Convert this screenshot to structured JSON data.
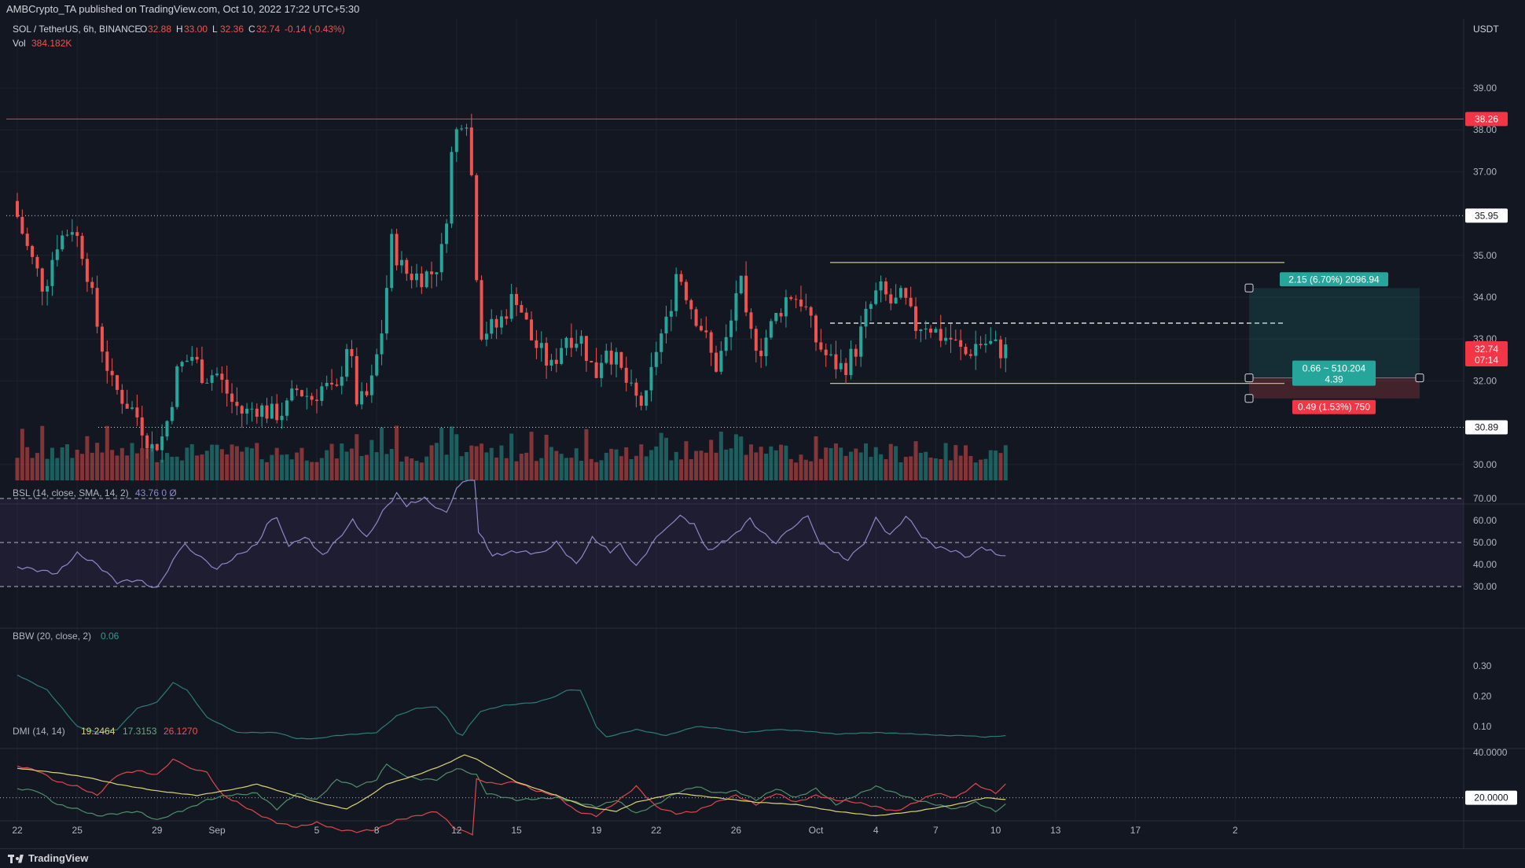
{
  "header": {
    "publish_text": "AMBCrypto_TA published on TradingView.com, Oct 10, 2022 17:22 UTC+5:30"
  },
  "legend": {
    "pair": "SOL / TetherUS, 6h, BINANCE",
    "o_label": "O",
    "o": "32.88",
    "h_label": "H",
    "h": "33.00",
    "l_label": "L",
    "l": "32.36",
    "c_label": "C",
    "c": "32.74",
    "change": "-0.14 (-0.43%)",
    "vol_label": "Vol",
    "vol": "384.182K"
  },
  "currency": "USDT",
  "price_axis": {
    "ticks": [
      {
        "value": 39,
        "label": "39.00"
      },
      {
        "value": 38,
        "label": "38.00"
      },
      {
        "value": 37,
        "label": "37.00"
      },
      {
        "value": 35,
        "label": "35.00"
      },
      {
        "value": 34,
        "label": "34.00"
      },
      {
        "value": 33,
        "label": "33.00"
      },
      {
        "value": 32,
        "label": "32.00"
      },
      {
        "value": 30,
        "label": "30.00"
      }
    ]
  },
  "price_badges": [
    {
      "value": 38.26,
      "label": "38.26",
      "bg": "#f23645",
      "fg": "#ffffff"
    },
    {
      "value": 35.95,
      "label": "35.95",
      "bg": "#ffffff",
      "fg": "#131722"
    },
    {
      "value": 30.89,
      "label": "30.89",
      "bg": "#ffffff",
      "fg": "#131722"
    }
  ],
  "last_price": {
    "value": 32.74,
    "label": "32.74",
    "countdown": "07:14",
    "bg": "#f23645"
  },
  "levels": {
    "resistance_red": 38.26,
    "dotted_high": 35.95,
    "dotted_low": 30.89,
    "range_high": 34.83,
    "range_mid": 33.38,
    "range_low": 31.94
  },
  "position_tool": {
    "entry": 32.07,
    "target": 34.22,
    "stop": 31.58,
    "target_label": "2.15 (6.70%) 2096.94",
    "entry_label_1": "0.66 ~ 510.204",
    "entry_label_2": "4.39",
    "stop_label": "0.49 (1.53%) 750"
  },
  "time_axis": {
    "labels": [
      {
        "label": "22",
        "day": 0
      },
      {
        "label": "25",
        "day": 3
      },
      {
        "label": "29",
        "day": 7
      },
      {
        "label": "Sep",
        "day": 10
      },
      {
        "label": "5",
        "day": 15
      },
      {
        "label": "8",
        "day": 18
      },
      {
        "label": "12",
        "day": 22
      },
      {
        "label": "15",
        "day": 25
      },
      {
        "label": "19",
        "day": 29
      },
      {
        "label": "22",
        "day": 32
      },
      {
        "label": "26",
        "day": 36
      },
      {
        "label": "Oct",
        "day": 40
      },
      {
        "label": "4",
        "day": 43
      },
      {
        "label": "7",
        "day": 46
      },
      {
        "label": "10",
        "day": 49
      },
      {
        "label": "13",
        "day": 52
      },
      {
        "label": "17",
        "day": 56
      },
      {
        "label": "2",
        "day": 61
      }
    ]
  },
  "rsi": {
    "label": "BSL (14, close, SMA, 14, 2)",
    "values_text": "43.76  0  Ø",
    "ticks": [
      {
        "value": 70,
        "label": "70.00"
      },
      {
        "value": 60,
        "label": "60.00"
      },
      {
        "value": 50,
        "label": "50.00"
      },
      {
        "value": 40,
        "label": "40.00"
      },
      {
        "value": 30,
        "label": "30.00"
      }
    ],
    "keypoints": [
      [
        0,
        39
      ],
      [
        2,
        36
      ],
      [
        3,
        45
      ],
      [
        4,
        40
      ],
      [
        5,
        32
      ],
      [
        6,
        33
      ],
      [
        7,
        29
      ],
      [
        7.8,
        42
      ],
      [
        8.4,
        49
      ],
      [
        9.2,
        43
      ],
      [
        10,
        38
      ],
      [
        11,
        44
      ],
      [
        12,
        49
      ],
      [
        12.5,
        58
      ],
      [
        13,
        62
      ],
      [
        13.6,
        48
      ],
      [
        14.4,
        53
      ],
      [
        15.3,
        44
      ],
      [
        16,
        51
      ],
      [
        16.8,
        60
      ],
      [
        17.5,
        52
      ],
      [
        18.3,
        64
      ],
      [
        19,
        72
      ],
      [
        19.5,
        67
      ],
      [
        20.4,
        70
      ],
      [
        21.5,
        63
      ],
      [
        22,
        75
      ],
      [
        22.3,
        77
      ],
      [
        22.9,
        78
      ],
      [
        23.1,
        55
      ],
      [
        23.8,
        44
      ],
      [
        25,
        46
      ],
      [
        26.2,
        45
      ],
      [
        27,
        50
      ],
      [
        28,
        40
      ],
      [
        28.8,
        52
      ],
      [
        29.7,
        46
      ],
      [
        30.2,
        49
      ],
      [
        31,
        39
      ],
      [
        32,
        52
      ],
      [
        32.6,
        58
      ],
      [
        33.2,
        62
      ],
      [
        33.9,
        58
      ],
      [
        34.6,
        46
      ],
      [
        35.3,
        50
      ],
      [
        36,
        54
      ],
      [
        36.7,
        61
      ],
      [
        37.2,
        55
      ],
      [
        38,
        50
      ],
      [
        38.8,
        57
      ],
      [
        39.6,
        62
      ],
      [
        40.2,
        50
      ],
      [
        40.9,
        46
      ],
      [
        41.6,
        42
      ],
      [
        42.4,
        50
      ],
      [
        43,
        61
      ],
      [
        43.7,
        53
      ],
      [
        44.5,
        62
      ],
      [
        45.3,
        53
      ],
      [
        46,
        48
      ],
      [
        47,
        46
      ],
      [
        47.7,
        43
      ],
      [
        48.3,
        48
      ],
      [
        49,
        45
      ],
      [
        49.5,
        44
      ]
    ]
  },
  "bbw": {
    "label": "BBW (20, close, 2)",
    "value": "0.06",
    "ticks": [
      {
        "value": 0.3,
        "label": "0.30"
      },
      {
        "value": 0.2,
        "label": "0.20"
      },
      {
        "value": 0.1,
        "label": "0.10"
      }
    ],
    "keypoints": [
      [
        0,
        0.27
      ],
      [
        1.5,
        0.22
      ],
      [
        3,
        0.1
      ],
      [
        4,
        0.08
      ],
      [
        5,
        0.09
      ],
      [
        6,
        0.16
      ],
      [
        7,
        0.18
      ],
      [
        7.8,
        0.245
      ],
      [
        8.5,
        0.22
      ],
      [
        9.5,
        0.13
      ],
      [
        11,
        0.08
      ],
      [
        13,
        0.08
      ],
      [
        14,
        0.06
      ],
      [
        15,
        0.06
      ],
      [
        16,
        0.07
      ],
      [
        17,
        0.075
      ],
      [
        18,
        0.08
      ],
      [
        19,
        0.135
      ],
      [
        20,
        0.16
      ],
      [
        21,
        0.165
      ],
      [
        21.5,
        0.13
      ],
      [
        22,
        0.08
      ],
      [
        22.3,
        0.07
      ],
      [
        22.6,
        0.1
      ],
      [
        23.2,
        0.15
      ],
      [
        24.4,
        0.17
      ],
      [
        26,
        0.18
      ],
      [
        27,
        0.2
      ],
      [
        27.5,
        0.22
      ],
      [
        28.2,
        0.22
      ],
      [
        29,
        0.1
      ],
      [
        29.5,
        0.065
      ],
      [
        31,
        0.09
      ],
      [
        32.5,
        0.07
      ],
      [
        34,
        0.1
      ],
      [
        35,
        0.095
      ],
      [
        36.5,
        0.08
      ],
      [
        38,
        0.09
      ],
      [
        39.5,
        0.085
      ],
      [
        41,
        0.075
      ],
      [
        43,
        0.08
      ],
      [
        45,
        0.075
      ],
      [
        46.5,
        0.07
      ],
      [
        47.5,
        0.07
      ],
      [
        48.5,
        0.065
      ],
      [
        49.5,
        0.07
      ]
    ]
  },
  "dmi": {
    "label": "DMI (14, 14)",
    "adx": "19.2464",
    "plus_di": "17.3153",
    "minus_di": "26.1270",
    "ticks": [
      {
        "value": 40,
        "label": "40.0000"
      },
      {
        "value": 20,
        "label": "20.0000"
      }
    ],
    "adx_keypoints": [
      [
        0,
        33
      ],
      [
        2,
        31
      ],
      [
        3.5,
        29
      ],
      [
        5,
        26
      ],
      [
        7,
        23
      ],
      [
        9,
        21
      ],
      [
        11,
        24
      ],
      [
        12,
        26
      ],
      [
        13.5,
        22
      ],
      [
        15,
        18
      ],
      [
        16.5,
        15
      ],
      [
        17.5,
        20
      ],
      [
        18.5,
        26
      ],
      [
        20,
        30
      ],
      [
        21.5,
        35
      ],
      [
        22.4,
        39
      ],
      [
        23,
        37
      ],
      [
        25,
        27
      ],
      [
        27,
        21
      ],
      [
        28.5,
        16
      ],
      [
        30,
        14
      ],
      [
        31,
        18
      ],
      [
        33,
        22
      ],
      [
        35,
        20
      ],
      [
        37,
        18
      ],
      [
        39,
        17
      ],
      [
        41,
        14
      ],
      [
        43,
        12
      ],
      [
        45,
        14
      ],
      [
        47,
        17
      ],
      [
        48.5,
        20
      ],
      [
        49.5,
        19.2
      ]
    ],
    "plus_keypoints": [
      [
        0,
        24
      ],
      [
        1,
        23
      ],
      [
        2,
        17
      ],
      [
        3,
        15
      ],
      [
        4,
        12
      ],
      [
        5,
        13
      ],
      [
        6,
        14
      ],
      [
        7,
        10
      ],
      [
        7.8,
        13
      ],
      [
        8.5,
        15
      ],
      [
        9.5,
        19
      ],
      [
        10.5,
        21
      ],
      [
        12,
        22
      ],
      [
        13,
        15
      ],
      [
        14,
        22
      ],
      [
        15,
        19
      ],
      [
        16,
        28
      ],
      [
        17,
        25
      ],
      [
        18,
        28
      ],
      [
        18.5,
        35
      ],
      [
        19.3,
        30
      ],
      [
        20.2,
        28
      ],
      [
        21,
        28
      ],
      [
        22,
        33
      ],
      [
        23,
        30
      ],
      [
        23.5,
        22
      ],
      [
        25,
        19
      ],
      [
        27,
        20
      ],
      [
        28,
        18
      ],
      [
        29,
        16
      ],
      [
        30,
        19
      ],
      [
        31,
        13
      ],
      [
        32,
        17
      ],
      [
        33,
        22
      ],
      [
        34,
        25
      ],
      [
        35,
        22
      ],
      [
        36,
        23
      ],
      [
        37,
        19
      ],
      [
        38,
        24
      ],
      [
        39,
        20
      ],
      [
        40,
        24
      ],
      [
        41,
        17
      ],
      [
        42,
        21
      ],
      [
        43,
        25
      ],
      [
        44,
        22
      ],
      [
        45,
        19
      ],
      [
        46,
        17
      ],
      [
        47,
        15
      ],
      [
        48,
        18
      ],
      [
        49,
        14
      ],
      [
        49.5,
        17.3
      ]
    ],
    "minus_keypoints": [
      [
        0,
        34
      ],
      [
        1,
        32
      ],
      [
        2,
        27
      ],
      [
        3,
        25
      ],
      [
        4,
        21
      ],
      [
        5,
        30
      ],
      [
        6,
        32
      ],
      [
        7,
        30
      ],
      [
        7.8,
        37
      ],
      [
        8.4,
        34
      ],
      [
        9.5,
        31
      ],
      [
        10.3,
        21
      ],
      [
        11,
        18
      ],
      [
        12,
        13
      ],
      [
        13,
        9
      ],
      [
        14,
        7
      ],
      [
        15,
        9
      ],
      [
        16,
        6
      ],
      [
        17,
        5
      ],
      [
        18,
        6
      ],
      [
        19,
        10
      ],
      [
        20,
        12
      ],
      [
        21,
        14
      ],
      [
        22,
        6
      ],
      [
        22.8,
        4
      ],
      [
        23,
        28
      ],
      [
        24,
        26
      ],
      [
        25,
        27
      ],
      [
        26,
        23
      ],
      [
        27,
        21
      ],
      [
        28,
        14
      ],
      [
        29,
        12
      ],
      [
        30,
        18
      ],
      [
        31,
        25
      ],
      [
        32,
        16
      ],
      [
        33,
        13
      ],
      [
        34,
        14
      ],
      [
        35,
        18
      ],
      [
        36,
        21
      ],
      [
        37,
        17
      ],
      [
        38,
        22
      ],
      [
        39,
        18
      ],
      [
        40,
        21
      ],
      [
        41,
        19
      ],
      [
        42,
        18
      ],
      [
        43,
        16
      ],
      [
        44,
        14
      ],
      [
        45,
        18
      ],
      [
        46,
        22
      ],
      [
        47,
        20
      ],
      [
        48,
        26
      ],
      [
        49,
        22
      ],
      [
        49.5,
        26.1
      ]
    ]
  },
  "colors": {
    "bg": "#131722",
    "up": "#26a69a",
    "down": "#ef5350",
    "grid": "#1e222d",
    "range_lines": "#c6cd63",
    "rsi_line": "#8f88c8",
    "bbw_line": "#2e7d75",
    "adx_line": "#d9d279",
    "plus_line": "#4f8f6a",
    "minus_line": "#e0474c"
  },
  "footer": {
    "brand": "TradingView"
  }
}
